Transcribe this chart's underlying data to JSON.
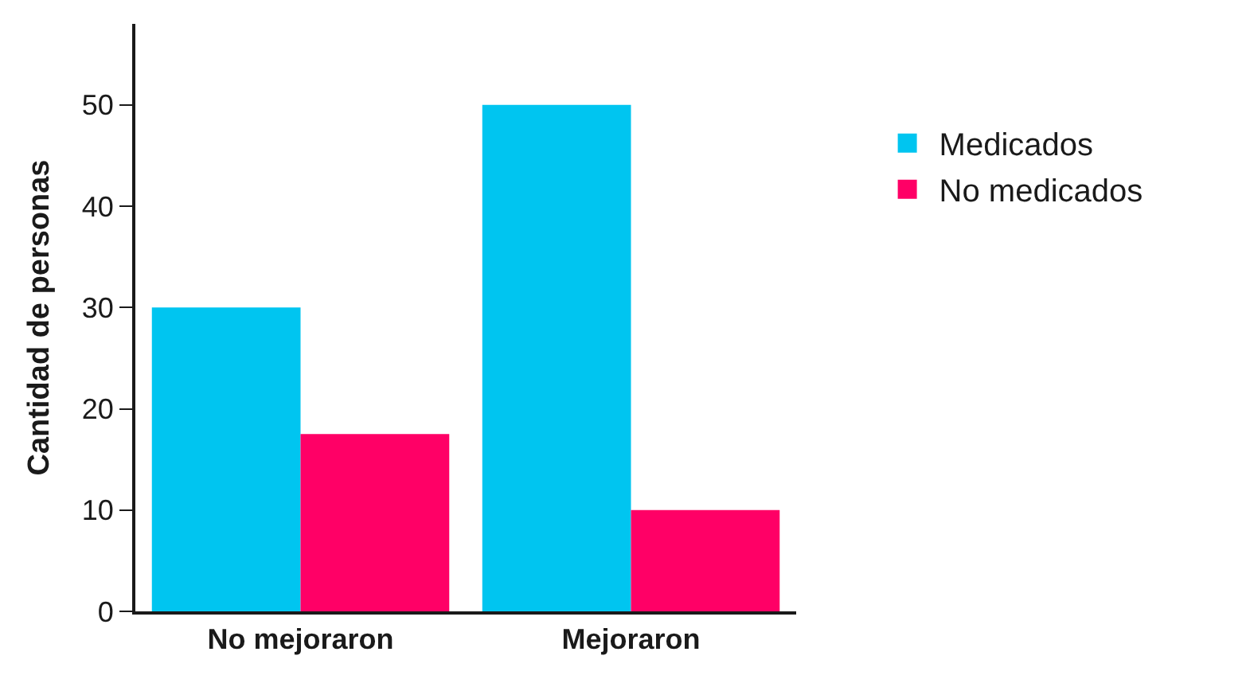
{
  "chart_data": {
    "type": "bar",
    "ylabel": "Cantidad de personas",
    "categories": [
      "No mejoraron",
      "Mejoraron"
    ],
    "series": [
      {
        "name": "Medicados",
        "color": "#00c5f0",
        "values": [
          30,
          50
        ]
      },
      {
        "name": "No medicados",
        "color": "#ff0066",
        "values": [
          17.5,
          10
        ]
      }
    ],
    "ylim": [
      0,
      58
    ],
    "yticks": [
      0,
      10,
      20,
      30,
      40,
      50
    ],
    "legend": "right"
  }
}
